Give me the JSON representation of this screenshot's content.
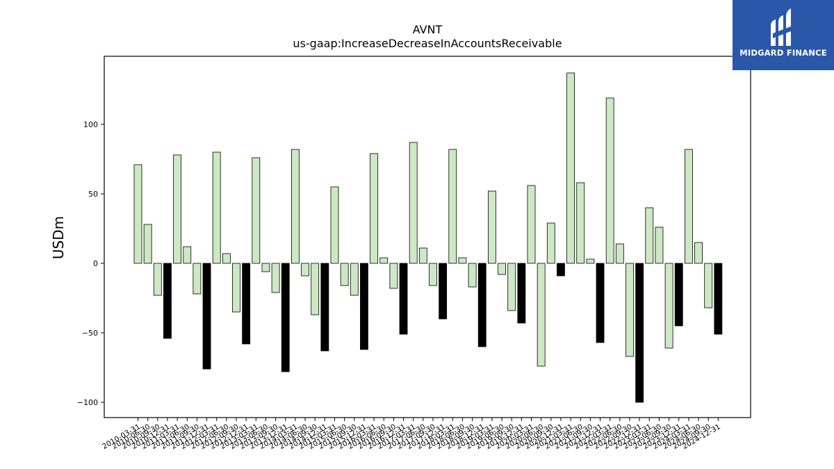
{
  "brand": {
    "name": "MIDGARD FINANCE"
  },
  "chart_data": {
    "type": "bar",
    "title": "AVNT",
    "subtitle": "us-gaap:IncreaseDecreaseInAccountsReceivable",
    "ylabel": "USDm",
    "xlabel": "",
    "ylim": [
      -110,
      140
    ],
    "yticks": [
      -100,
      -50,
      0,
      50,
      100
    ],
    "ytick_labels": [
      "−100",
      "−50",
      "0",
      "50",
      "100"
    ],
    "grid": false,
    "colors": {
      "quarterly": "#cce8c4",
      "annual": "#000000",
      "edge": "#000000"
    },
    "categories": [
      "2010-03-31",
      "2010-06-30",
      "2010-09-30",
      "2010-12-31",
      "2011-03-31",
      "2011-06-30",
      "2011-09-30",
      "2011-12-31",
      "2012-03-31",
      "2012-06-30",
      "2012-09-30",
      "2012-12-31",
      "2013-03-31",
      "2013-06-30",
      "2013-09-30",
      "2013-12-31",
      "2014-03-31",
      "2014-06-30",
      "2014-09-30",
      "2014-12-31",
      "2015-03-31",
      "2015-06-30",
      "2015-09-30",
      "2015-12-31",
      "2016-03-31",
      "2016-06-30",
      "2016-09-30",
      "2016-12-31",
      "2017-03-31",
      "2017-06-30",
      "2017-09-30",
      "2017-12-31",
      "2018-03-31",
      "2018-06-30",
      "2018-09-30",
      "2018-12-31",
      "2019-03-31",
      "2019-06-30",
      "2019-09-30",
      "2019-12-31",
      "2020-03-31",
      "2020-06-30",
      "2020-09-30",
      "2020-12-31",
      "2021-03-31",
      "2021-06-30",
      "2021-09-30",
      "2021-12-31",
      "2022-03-31",
      "2022-06-30",
      "2022-09-30",
      "2022-12-31",
      "2023-03-31",
      "2023-06-30",
      "2023-09-30",
      "2023-12-31",
      "2024-03-31",
      "2024-06-30",
      "2024-09-30",
      "2024-12-31"
    ],
    "values": [
      71,
      28,
      -23,
      -54,
      78,
      12,
      -22,
      -76,
      80,
      7,
      -35,
      -58,
      76,
      -6,
      -21,
      -78,
      82,
      -9,
      -37,
      -63,
      55,
      -16,
      -23,
      -62,
      79,
      4,
      -18,
      -51,
      87,
      11,
      -16,
      -40,
      82,
      4,
      -17,
      -60,
      52,
      -8,
      -34,
      -43,
      56,
      -74,
      29,
      -9,
      137,
      58,
      3,
      -57,
      119,
      14,
      -67,
      -100,
      40,
      26,
      -61,
      -45,
      82,
      15,
      -32,
      -51
    ],
    "bar_types": [
      "Q",
      "Q",
      "Q",
      "FY",
      "Q",
      "Q",
      "Q",
      "FY",
      "Q",
      "Q",
      "Q",
      "FY",
      "Q",
      "Q",
      "Q",
      "FY",
      "Q",
      "Q",
      "Q",
      "FY",
      "Q",
      "Q",
      "Q",
      "FY",
      "Q",
      "Q",
      "Q",
      "FY",
      "Q",
      "Q",
      "Q",
      "FY",
      "Q",
      "Q",
      "Q",
      "FY",
      "Q",
      "Q",
      "Q",
      "FY",
      "Q",
      "Q",
      "Q",
      "FY",
      "Q",
      "Q",
      "Q",
      "FY",
      "Q",
      "Q",
      "Q",
      "FY",
      "Q",
      "Q",
      "Q",
      "FY",
      "Q",
      "Q",
      "Q",
      "FY"
    ]
  }
}
